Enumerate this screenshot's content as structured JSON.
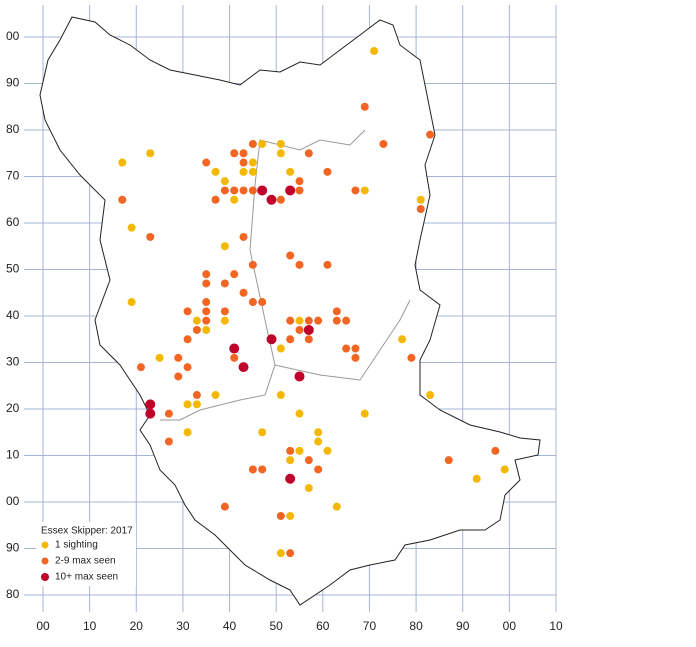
{
  "chart_data": {
    "type": "scatter",
    "title": "Essex Skipper:  2017",
    "xlim": [
      0,
      110
    ],
    "ylim": [
      -20,
      100
    ],
    "xticks": [
      {
        "value": 0,
        "label": "00"
      },
      10,
      20,
      30,
      40,
      50,
      60,
      70,
      80,
      90,
      {
        "value": 100,
        "label": "00"
      },
      {
        "value": 110,
        "label": "10"
      }
    ],
    "yticks": [
      {
        "value": -20,
        "label": "80"
      },
      {
        "value": -10,
        "label": "90"
      },
      {
        "value": 0,
        "label": "00"
      },
      10,
      20,
      30,
      40,
      50,
      60,
      70,
      80,
      90,
      {
        "value": 100,
        "label": "00"
      }
    ],
    "grid": true,
    "series": [
      {
        "name": "1 sighting",
        "color": "#f5b800",
        "x": [
          71,
          17,
          23,
          37,
          47,
          51,
          51,
          43,
          45,
          45,
          39,
          53,
          41,
          69,
          81,
          19,
          39,
          19,
          39,
          55,
          33,
          35,
          25,
          51,
          77,
          37,
          51,
          31,
          33,
          55,
          69,
          83,
          31,
          47,
          59,
          59,
          55,
          61,
          53,
          57,
          93,
          99,
          63,
          53,
          51
        ],
        "y": [
          97,
          73,
          75,
          71,
          77,
          77,
          75,
          71,
          73,
          71,
          69,
          71,
          65,
          67,
          65,
          59,
          55,
          43,
          39,
          39,
          39,
          37,
          31,
          33,
          35,
          23,
          23,
          21,
          21,
          19,
          19,
          23,
          15,
          15,
          15,
          13,
          11,
          11,
          9,
          3,
          5,
          7,
          -1,
          -3,
          -11
        ]
      },
      {
        "name": "2-9 max seen",
        "color": "#f26522",
        "x": [
          69,
          83,
          73,
          41,
          43,
          45,
          43,
          35,
          57,
          61,
          55,
          17,
          37,
          39,
          41,
          43,
          45,
          51,
          55,
          67,
          81,
          23,
          43,
          53,
          55,
          61,
          45,
          35,
          41,
          35,
          39,
          43,
          35,
          45,
          47,
          31,
          35,
          39,
          63,
          35,
          53,
          57,
          59,
          63,
          65,
          33,
          55,
          31,
          53,
          57,
          65,
          67,
          29,
          41,
          67,
          79,
          21,
          31,
          29,
          33,
          27,
          27,
          53,
          57,
          59,
          45,
          47,
          87,
          97,
          39,
          51,
          53
        ],
        "y": [
          85,
          79,
          77,
          75,
          75,
          77,
          73,
          73,
          75,
          71,
          69,
          65,
          65,
          67,
          67,
          67,
          67,
          65,
          67,
          67,
          63,
          57,
          57,
          53,
          51,
          51,
          51,
          49,
          49,
          47,
          47,
          45,
          43,
          43,
          43,
          41,
          41,
          41,
          41,
          39,
          39,
          39,
          39,
          39,
          39,
          37,
          37,
          35,
          35,
          35,
          33,
          33,
          31,
          31,
          31,
          31,
          29,
          29,
          27,
          23,
          19,
          13,
          11,
          9,
          7,
          7,
          7,
          9,
          11,
          -1,
          -3,
          -11
        ]
      },
      {
        "name": "10+ max seen",
        "color": "#c0002a",
        "x": [
          47,
          49,
          53,
          57,
          49,
          41,
          43,
          55,
          23,
          23,
          53
        ],
        "y": [
          67,
          65,
          67,
          37,
          35,
          33,
          29,
          27,
          21,
          19,
          5
        ]
      }
    ]
  }
}
